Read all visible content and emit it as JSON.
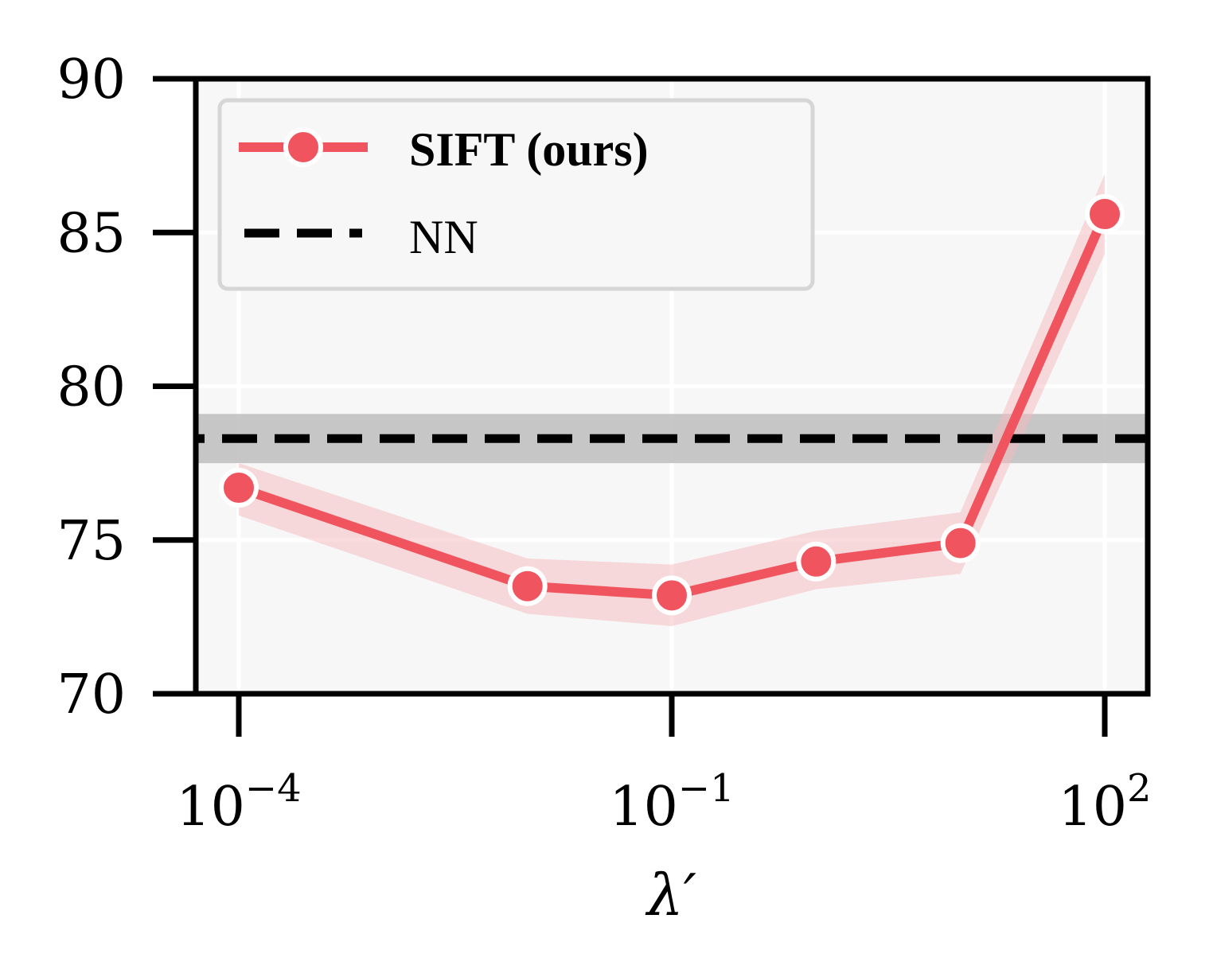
{
  "chart_data": {
    "type": "line",
    "xscale": "log",
    "x": [
      0.0001,
      0.01,
      0.1,
      1,
      10,
      100
    ],
    "xlim": [
      4e-05,
      200
    ],
    "ylim": [
      70,
      90
    ],
    "xticks": [
      0.0001,
      0.1,
      100
    ],
    "xtick_labels": [
      {
        "base": "10",
        "exp": "−4"
      },
      {
        "base": "10",
        "exp": "−1"
      },
      {
        "base": "10",
        "exp": "2"
      }
    ],
    "yticks": [
      70,
      75,
      80,
      85,
      90
    ],
    "ytick_labels": [
      "70",
      "75",
      "80",
      "85",
      "90"
    ],
    "xlabel": "λ′",
    "ylabel": "",
    "title": "",
    "grid": true,
    "legend_position": "top-left",
    "series": [
      {
        "name": "SIFT (ours)",
        "style": "solid-line-with-markers",
        "color": "#f0555f",
        "band_color": "#f5b8be",
        "values": [
          76.7,
          73.5,
          73.2,
          74.3,
          74.9,
          85.6
        ],
        "lower": [
          75.8,
          72.6,
          72.2,
          73.4,
          73.9,
          84.3
        ],
        "upper": [
          77.5,
          74.4,
          74.2,
          75.3,
          75.9,
          86.9
        ]
      },
      {
        "name": "NN",
        "style": "dashed-horizontal",
        "color": "#000000",
        "band_color": "#bdbdbd",
        "value": 78.3,
        "lower": 77.5,
        "upper": 79.1
      }
    ]
  }
}
